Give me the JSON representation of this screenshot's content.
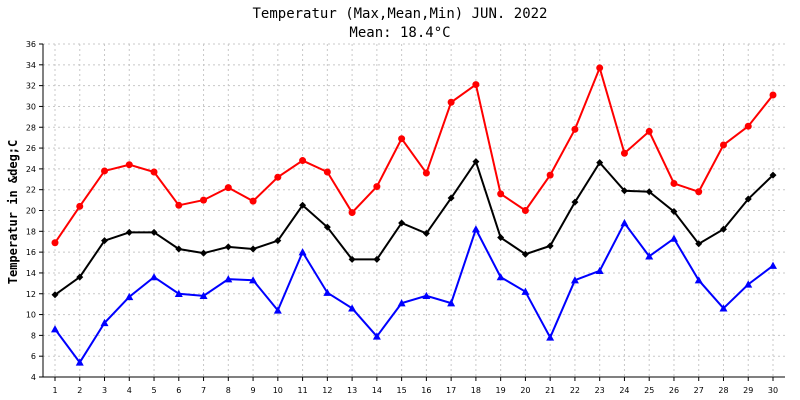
{
  "chart_data": {
    "type": "line",
    "title": "Temperatur (Max,Mean,Min) JUN. 2022",
    "subtitle": "Mean: 18.4°C",
    "xlabel": "",
    "ylabel": "Temperatur in &deg;C",
    "x": [
      1,
      2,
      3,
      4,
      5,
      6,
      7,
      8,
      9,
      10,
      11,
      12,
      13,
      14,
      15,
      16,
      17,
      18,
      19,
      20,
      21,
      22,
      23,
      24,
      25,
      26,
      27,
      28,
      29,
      30
    ],
    "ylim": [
      4,
      36
    ],
    "yticks": [
      4,
      6,
      8,
      10,
      12,
      14,
      16,
      18,
      20,
      22,
      24,
      26,
      28,
      30,
      32,
      34,
      36
    ],
    "grid": true,
    "series": [
      {
        "color": "#ff0000",
        "marker": "circle",
        "values": [
          16.9,
          20.4,
          23.8,
          24.4,
          23.7,
          20.5,
          21.0,
          22.2,
          20.9,
          23.2,
          24.8,
          23.7,
          19.8,
          22.3,
          26.9,
          23.6,
          30.4,
          32.1,
          21.6,
          20.0,
          23.4,
          27.8,
          33.7,
          25.5,
          27.6,
          22.6,
          21.8,
          26.3,
          28.1,
          31.1
        ]
      },
      {
        "color": "#000000",
        "marker": "diamond",
        "values": [
          11.9,
          13.6,
          17.1,
          17.9,
          17.9,
          16.3,
          15.9,
          16.5,
          16.3,
          17.1,
          20.5,
          18.4,
          15.3,
          15.3,
          18.8,
          17.8,
          21.2,
          24.7,
          17.4,
          15.8,
          16.6,
          20.8,
          24.6,
          21.9,
          21.8,
          19.9,
          16.8,
          18.2,
          21.1,
          23.4
        ]
      },
      {
        "color": "#0000ff",
        "marker": "triangle",
        "values": [
          8.6,
          5.4,
          9.2,
          11.7,
          13.6,
          12.0,
          11.8,
          13.4,
          13.3,
          10.4,
          16.0,
          12.1,
          10.6,
          7.9,
          11.1,
          11.8,
          11.1,
          18.2,
          13.6,
          12.2,
          7.8,
          13.3,
          14.2,
          18.8,
          15.6,
          17.3,
          13.3,
          10.6,
          12.9,
          14.7
        ]
      }
    ]
  }
}
